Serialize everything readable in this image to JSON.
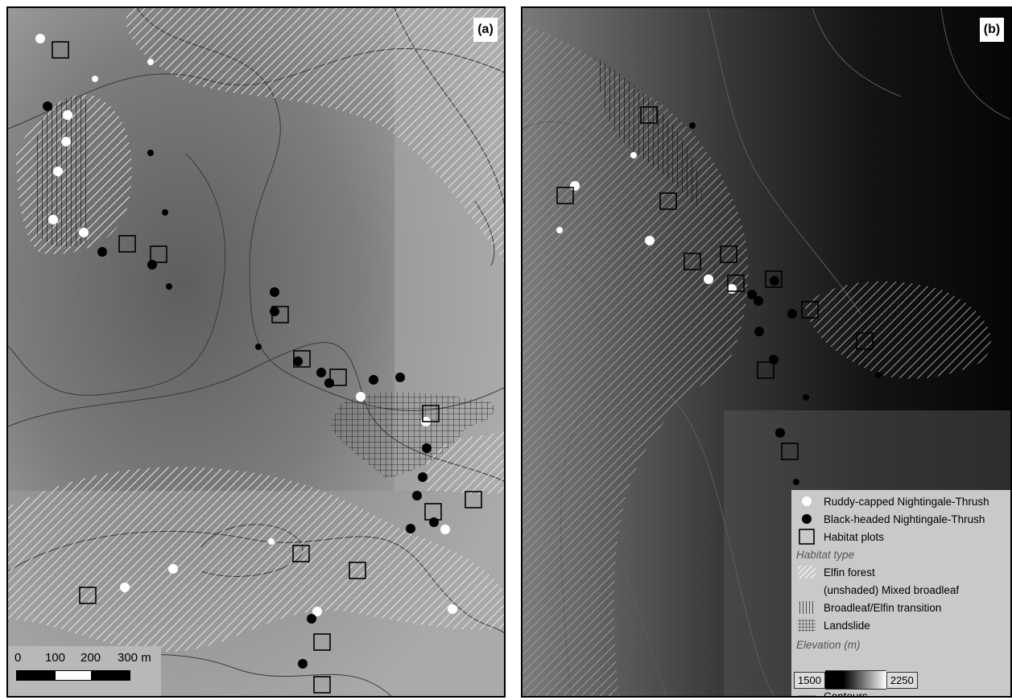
{
  "panels": {
    "a": {
      "letter": "(a)"
    },
    "b": {
      "letter": "(b)"
    }
  },
  "scalebar": {
    "labels": [
      "0",
      "100",
      "200",
      "300 m"
    ]
  },
  "legend": {
    "items": [
      {
        "symbol": "white-circle",
        "label": "Ruddy-capped Nightingale-Thrush"
      },
      {
        "symbol": "black-circle",
        "label": "Black-headed Nightingale-Thrush"
      },
      {
        "symbol": "open-square",
        "label": "Habitat plots"
      }
    ],
    "habitat_heading": "Habitat type",
    "habitat_items": [
      {
        "pattern": "diagonal-hatch",
        "label": "Elfin forest"
      },
      {
        "pattern": "none",
        "label": "(unshaded) Mixed broadleaf"
      },
      {
        "pattern": "vertical-diagonal-hatch",
        "label": "Broadleaf/Elfin transition"
      },
      {
        "pattern": "grid-hatch",
        "label": "Landslide"
      }
    ],
    "elevation_heading": "Elevation (m)",
    "elevation_min": "1500",
    "elevation_max": "2250",
    "contours_label": "Contours"
  },
  "colors": {
    "white_marker": "#ffffff",
    "black_marker": "#000000",
    "hatch": "#e6e6e6"
  }
}
